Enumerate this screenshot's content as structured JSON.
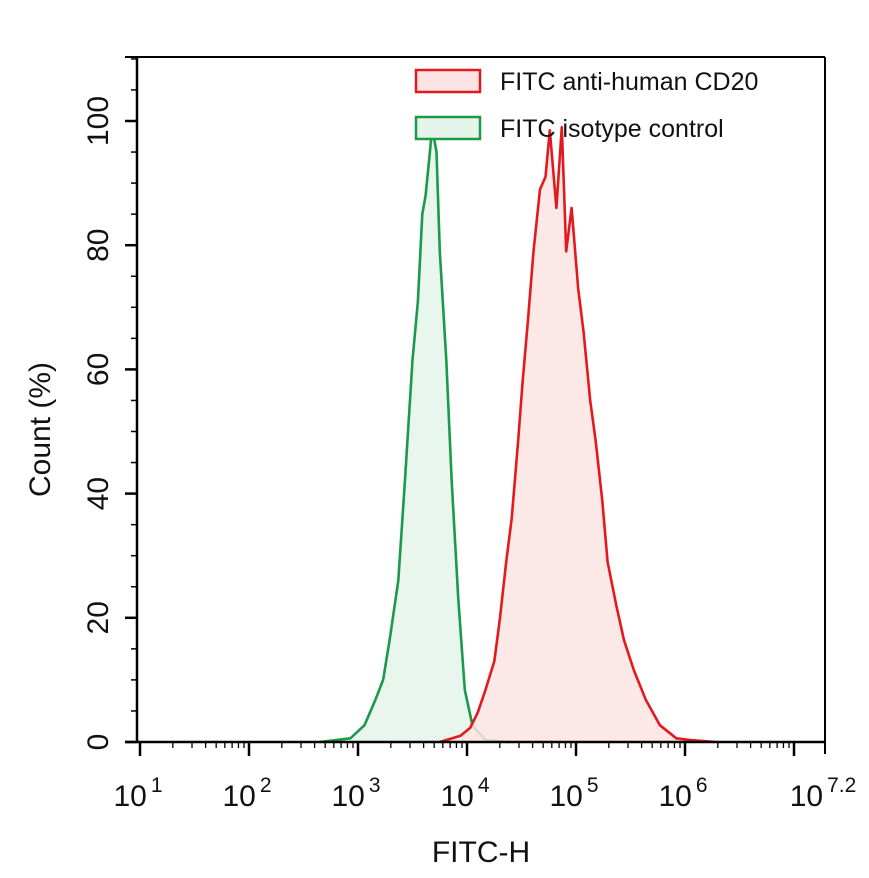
{
  "chart_data": {
    "type": "area",
    "title": "",
    "xlabel": "FITC-H",
    "ylabel": "Count (%)",
    "xscale": "log10",
    "xlim_log10": [
      1,
      7.2
    ],
    "ylim": [
      0,
      110
    ],
    "x_ticks": [
      {
        "base": "10",
        "exp": "1",
        "log": 1
      },
      {
        "base": "10",
        "exp": "2",
        "log": 2
      },
      {
        "base": "10",
        "exp": "3",
        "log": 3
      },
      {
        "base": "10",
        "exp": "4",
        "log": 4
      },
      {
        "base": "10",
        "exp": "5",
        "log": 5
      },
      {
        "base": "10",
        "exp": "6",
        "log": 6
      },
      {
        "base": "10",
        "exp": "7.2",
        "log": 7.2
      }
    ],
    "y_ticks": [
      0,
      20,
      40,
      60,
      80,
      100
    ],
    "grid": false,
    "legend": {
      "position": "top-right",
      "entries": [
        "FITC anti-human CD20",
        "FITC isotype control"
      ]
    },
    "series": [
      {
        "name": "FITC isotype control",
        "color": "#1a9a4a",
        "fill": "#e4f4ea",
        "x_log10": [
          2.65,
          2.93,
          3.06,
          3.16,
          3.23,
          3.29,
          3.37,
          3.43,
          3.5,
          3.55,
          3.59,
          3.62,
          3.66,
          3.68,
          3.72,
          3.75,
          3.81,
          3.86,
          3.92,
          3.98,
          4.05,
          4.17,
          4.39
        ],
        "values": [
          0,
          0.6,
          2.7,
          6.8,
          10,
          16.4,
          26,
          42,
          61.5,
          71,
          85,
          88,
          95,
          99,
          95,
          79,
          61.5,
          42,
          23,
          8.4,
          2.7,
          0.3,
          0
        ]
      },
      {
        "name": "FITC anti-human CD20",
        "color": "#e31a1c",
        "fill": "#fde4e4",
        "x_log10": [
          3.75,
          3.94,
          4.03,
          4.1,
          4.17,
          4.25,
          4.3,
          4.36,
          4.41,
          4.47,
          4.51,
          4.56,
          4.61,
          4.67,
          4.72,
          4.76,
          4.82,
          4.87,
          4.91,
          4.96,
          5.02,
          5.07,
          5.13,
          5.18,
          5.24,
          5.29,
          5.37,
          5.44,
          5.53,
          5.64,
          5.77,
          5.92,
          6.05,
          6.28
        ],
        "values": [
          0,
          1,
          2.3,
          4.8,
          8.4,
          13,
          19.6,
          29,
          36,
          48.6,
          58,
          68,
          79,
          89,
          91,
          98.5,
          86,
          99,
          79,
          86,
          73,
          66,
          55,
          48.6,
          39,
          29,
          22,
          16.4,
          11.6,
          6.8,
          2.7,
          0.6,
          0.3,
          0
        ]
      }
    ]
  }
}
